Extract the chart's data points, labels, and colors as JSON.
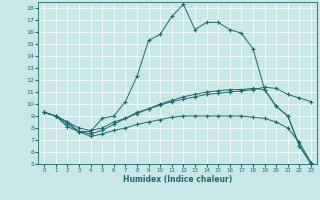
{
  "xlabel": "Humidex (Indice chaleur)",
  "bg_color": "#c8e8e8",
  "line_color": "#1a6b6b",
  "xlim": [
    -0.5,
    23.5
  ],
  "ylim": [
    5,
    18.5
  ],
  "xticks": [
    0,
    1,
    2,
    3,
    4,
    5,
    6,
    7,
    8,
    9,
    10,
    11,
    12,
    13,
    14,
    15,
    16,
    17,
    18,
    19,
    20,
    21,
    22,
    23
  ],
  "yticks": [
    5,
    6,
    7,
    8,
    9,
    10,
    11,
    12,
    13,
    14,
    15,
    16,
    17,
    18
  ],
  "curves": [
    {
      "x": [
        0,
        1,
        2,
        3,
        4,
        5,
        6,
        7,
        8,
        9,
        10,
        11,
        12,
        13,
        14,
        15,
        16,
        17,
        18,
        19,
        20,
        21,
        22,
        23
      ],
      "y": [
        9.3,
        9.0,
        8.1,
        7.7,
        7.7,
        8.8,
        9.0,
        10.2,
        12.3,
        15.3,
        15.8,
        17.3,
        18.3,
        16.2,
        16.8,
        16.8,
        16.2,
        15.9,
        14.6,
        11.2,
        9.8,
        9.0,
        6.5,
        5.0
      ]
    },
    {
      "x": [
        0,
        1,
        2,
        3,
        4,
        5,
        6,
        7,
        8,
        9,
        10,
        11,
        12,
        13,
        14,
        15,
        16,
        17,
        18,
        19,
        20,
        21,
        22,
        23
      ],
      "y": [
        9.3,
        9.0,
        8.3,
        7.7,
        7.5,
        7.8,
        8.3,
        8.8,
        9.2,
        9.6,
        10.0,
        10.3,
        10.6,
        10.8,
        11.0,
        11.1,
        11.2,
        11.2,
        11.3,
        11.2,
        9.8,
        9.0,
        6.5,
        5.1
      ]
    },
    {
      "x": [
        0,
        1,
        2,
        3,
        4,
        5,
        6,
        7,
        8,
        9,
        10,
        11,
        12,
        13,
        14,
        15,
        16,
        17,
        18,
        19,
        20,
        21,
        22,
        23
      ],
      "y": [
        9.3,
        9.0,
        8.5,
        8.0,
        7.8,
        8.0,
        8.5,
        8.8,
        9.3,
        9.6,
        9.9,
        10.2,
        10.4,
        10.6,
        10.8,
        10.9,
        11.0,
        11.1,
        11.2,
        11.4,
        11.3,
        10.8,
        10.5,
        10.2
      ]
    },
    {
      "x": [
        0,
        1,
        2,
        3,
        4,
        5,
        6,
        7,
        8,
        9,
        10,
        11,
        12,
        13,
        14,
        15,
        16,
        17,
        18,
        19,
        20,
        21,
        22,
        23
      ],
      "y": [
        9.3,
        9.0,
        8.5,
        7.7,
        7.3,
        7.5,
        7.8,
        8.0,
        8.3,
        8.5,
        8.7,
        8.9,
        9.0,
        9.0,
        9.0,
        9.0,
        9.0,
        9.0,
        8.9,
        8.8,
        8.5,
        8.0,
        6.8,
        5.1
      ]
    }
  ]
}
